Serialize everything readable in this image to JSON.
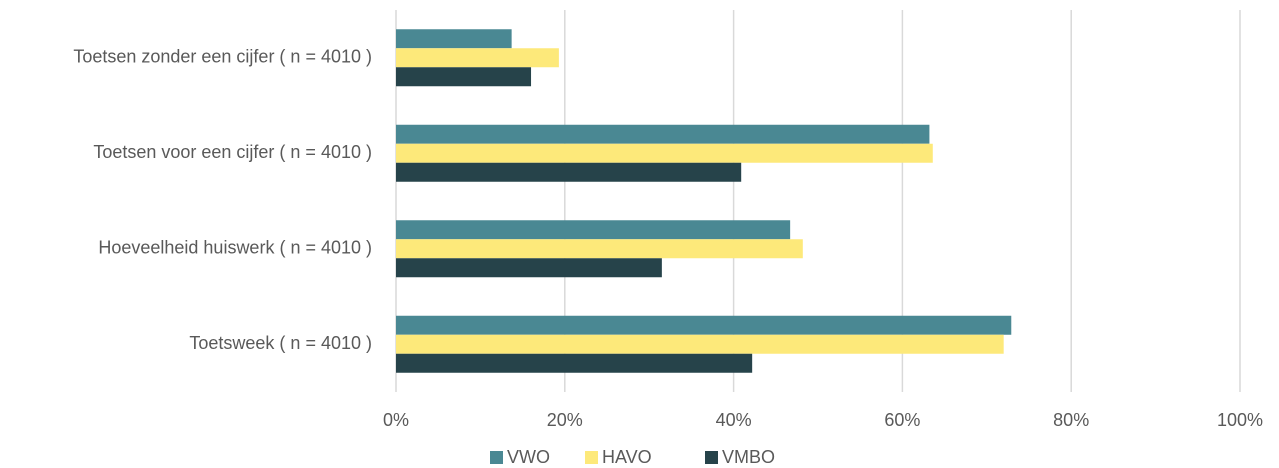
{
  "chart_data": {
    "type": "barh",
    "categories": [
      "Toetsen zonder een cijfer ( n = 4010 )",
      "Toetsen voor een cijfer ( n = 4010 )",
      "Hoeveelheid huiswerk ( n = 4010 )",
      "Toetsweek ( n = 4010 )"
    ],
    "series": [
      {
        "name": "VWO",
        "color": "#4a8893",
        "values": [
          13.7,
          63.2,
          46.7,
          72.9
        ]
      },
      {
        "name": "HAVO",
        "color": "#fde97a",
        "values": [
          19.3,
          63.6,
          48.2,
          72.0
        ]
      },
      {
        "name": "VMBO",
        "color": "#26434a",
        "values": [
          16.0,
          40.9,
          31.5,
          42.2
        ]
      }
    ],
    "xlim": [
      0,
      100
    ],
    "xticks": [
      {
        "value": 0,
        "label": "0%"
      },
      {
        "value": 20,
        "label": "20%"
      },
      {
        "value": 40,
        "label": "40%"
      },
      {
        "value": 60,
        "label": "60%"
      },
      {
        "value": 80,
        "label": "80%"
      },
      {
        "value": 100,
        "label": "100%"
      }
    ],
    "grid": true,
    "legend": "bottom"
  }
}
